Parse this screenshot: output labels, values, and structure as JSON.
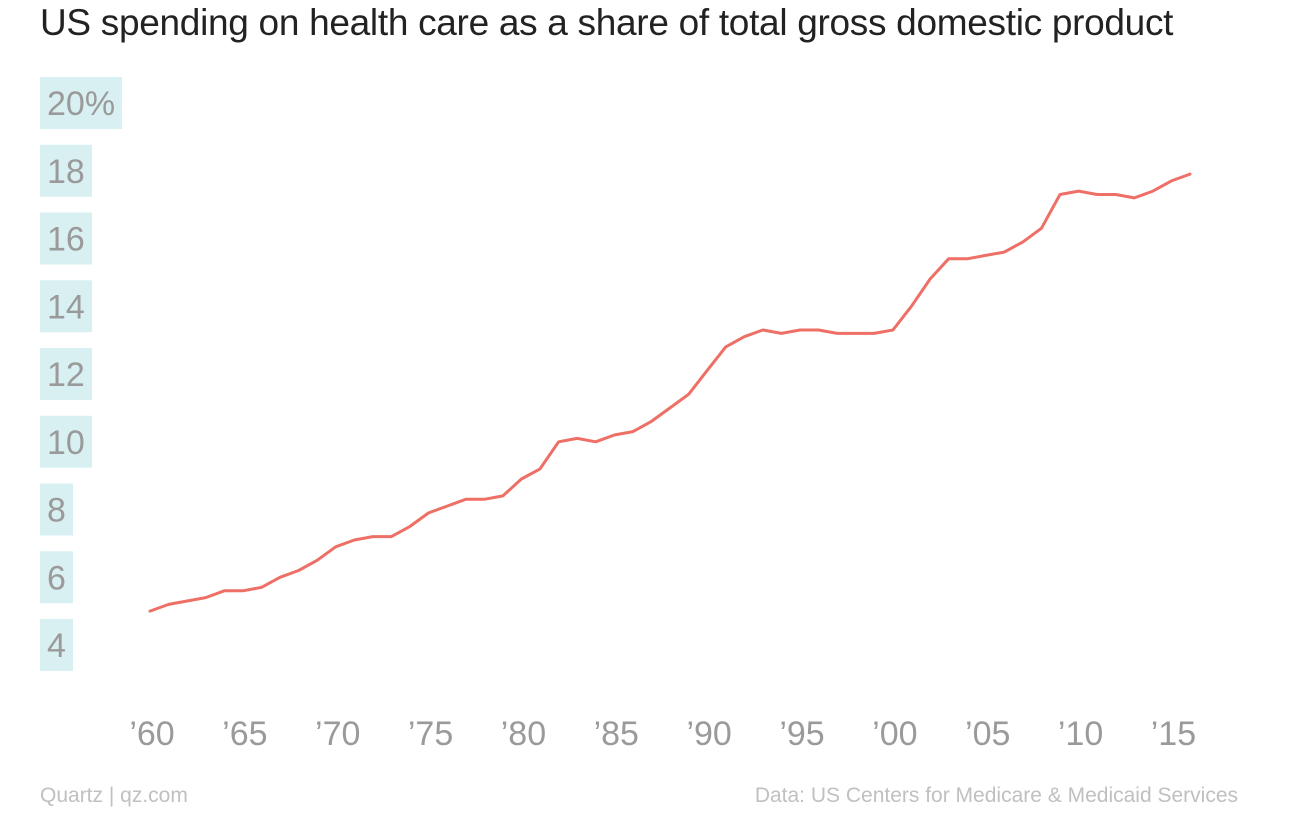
{
  "chart_data": {
    "type": "line",
    "title": "US spending on health care as a share of total gross domestic product",
    "xlabel": "",
    "ylabel": "",
    "xlim": [
      1960,
      2016
    ],
    "ylim": [
      4,
      20
    ],
    "y_ticks": [
      {
        "value": 20,
        "label": "20%"
      },
      {
        "value": 18,
        "label": "18"
      },
      {
        "value": 16,
        "label": "16"
      },
      {
        "value": 14,
        "label": "14"
      },
      {
        "value": 12,
        "label": "12"
      },
      {
        "value": 10,
        "label": "10"
      },
      {
        "value": 8,
        "label": "8"
      },
      {
        "value": 6,
        "label": "6"
      },
      {
        "value": 4,
        "label": "4"
      }
    ],
    "x_ticks": [
      {
        "value": 1960,
        "label": "’60"
      },
      {
        "value": 1965,
        "label": "’65"
      },
      {
        "value": 1970,
        "label": "’70"
      },
      {
        "value": 1975,
        "label": "’75"
      },
      {
        "value": 1980,
        "label": "’80"
      },
      {
        "value": 1985,
        "label": "’85"
      },
      {
        "value": 1990,
        "label": "’90"
      },
      {
        "value": 1995,
        "label": "’95"
      },
      {
        "value": 2000,
        "label": "’00"
      },
      {
        "value": 2005,
        "label": "’05"
      },
      {
        "value": 2010,
        "label": "’10"
      },
      {
        "value": 2015,
        "label": "’15"
      }
    ],
    "grid": false,
    "legend": "none",
    "series": [
      {
        "color": "#ee6f65",
        "x": [
          1960,
          1961,
          1962,
          1963,
          1964,
          1965,
          1966,
          1967,
          1968,
          1969,
          1970,
          1971,
          1972,
          1973,
          1974,
          1975,
          1976,
          1977,
          1978,
          1979,
          1980,
          1981,
          1982,
          1983,
          1984,
          1985,
          1986,
          1987,
          1988,
          1989,
          1990,
          1991,
          1992,
          1993,
          1994,
          1995,
          1996,
          1997,
          1998,
          1999,
          2000,
          2001,
          2002,
          2003,
          2004,
          2005,
          2006,
          2007,
          2008,
          2009,
          2010,
          2011,
          2012,
          2013,
          2014,
          2015,
          2016
        ],
        "values": [
          5.0,
          5.2,
          5.3,
          5.4,
          5.6,
          5.6,
          5.7,
          6.0,
          6.2,
          6.5,
          6.9,
          7.1,
          7.2,
          7.2,
          7.5,
          7.9,
          8.1,
          8.3,
          8.3,
          8.4,
          8.9,
          9.2,
          10.0,
          10.1,
          10.0,
          10.2,
          10.3,
          10.6,
          11.0,
          11.4,
          12.1,
          12.8,
          13.1,
          13.3,
          13.2,
          13.3,
          13.3,
          13.2,
          13.2,
          13.2,
          13.3,
          14.0,
          14.8,
          15.4,
          15.4,
          15.5,
          15.6,
          15.9,
          16.3,
          17.3,
          17.4,
          17.3,
          17.3,
          17.2,
          17.4,
          17.7,
          17.9
        ]
      }
    ]
  },
  "footer": {
    "left": "Quartz | qz.com",
    "right": "Data: US Centers for Medicare & Medicaid Services"
  }
}
